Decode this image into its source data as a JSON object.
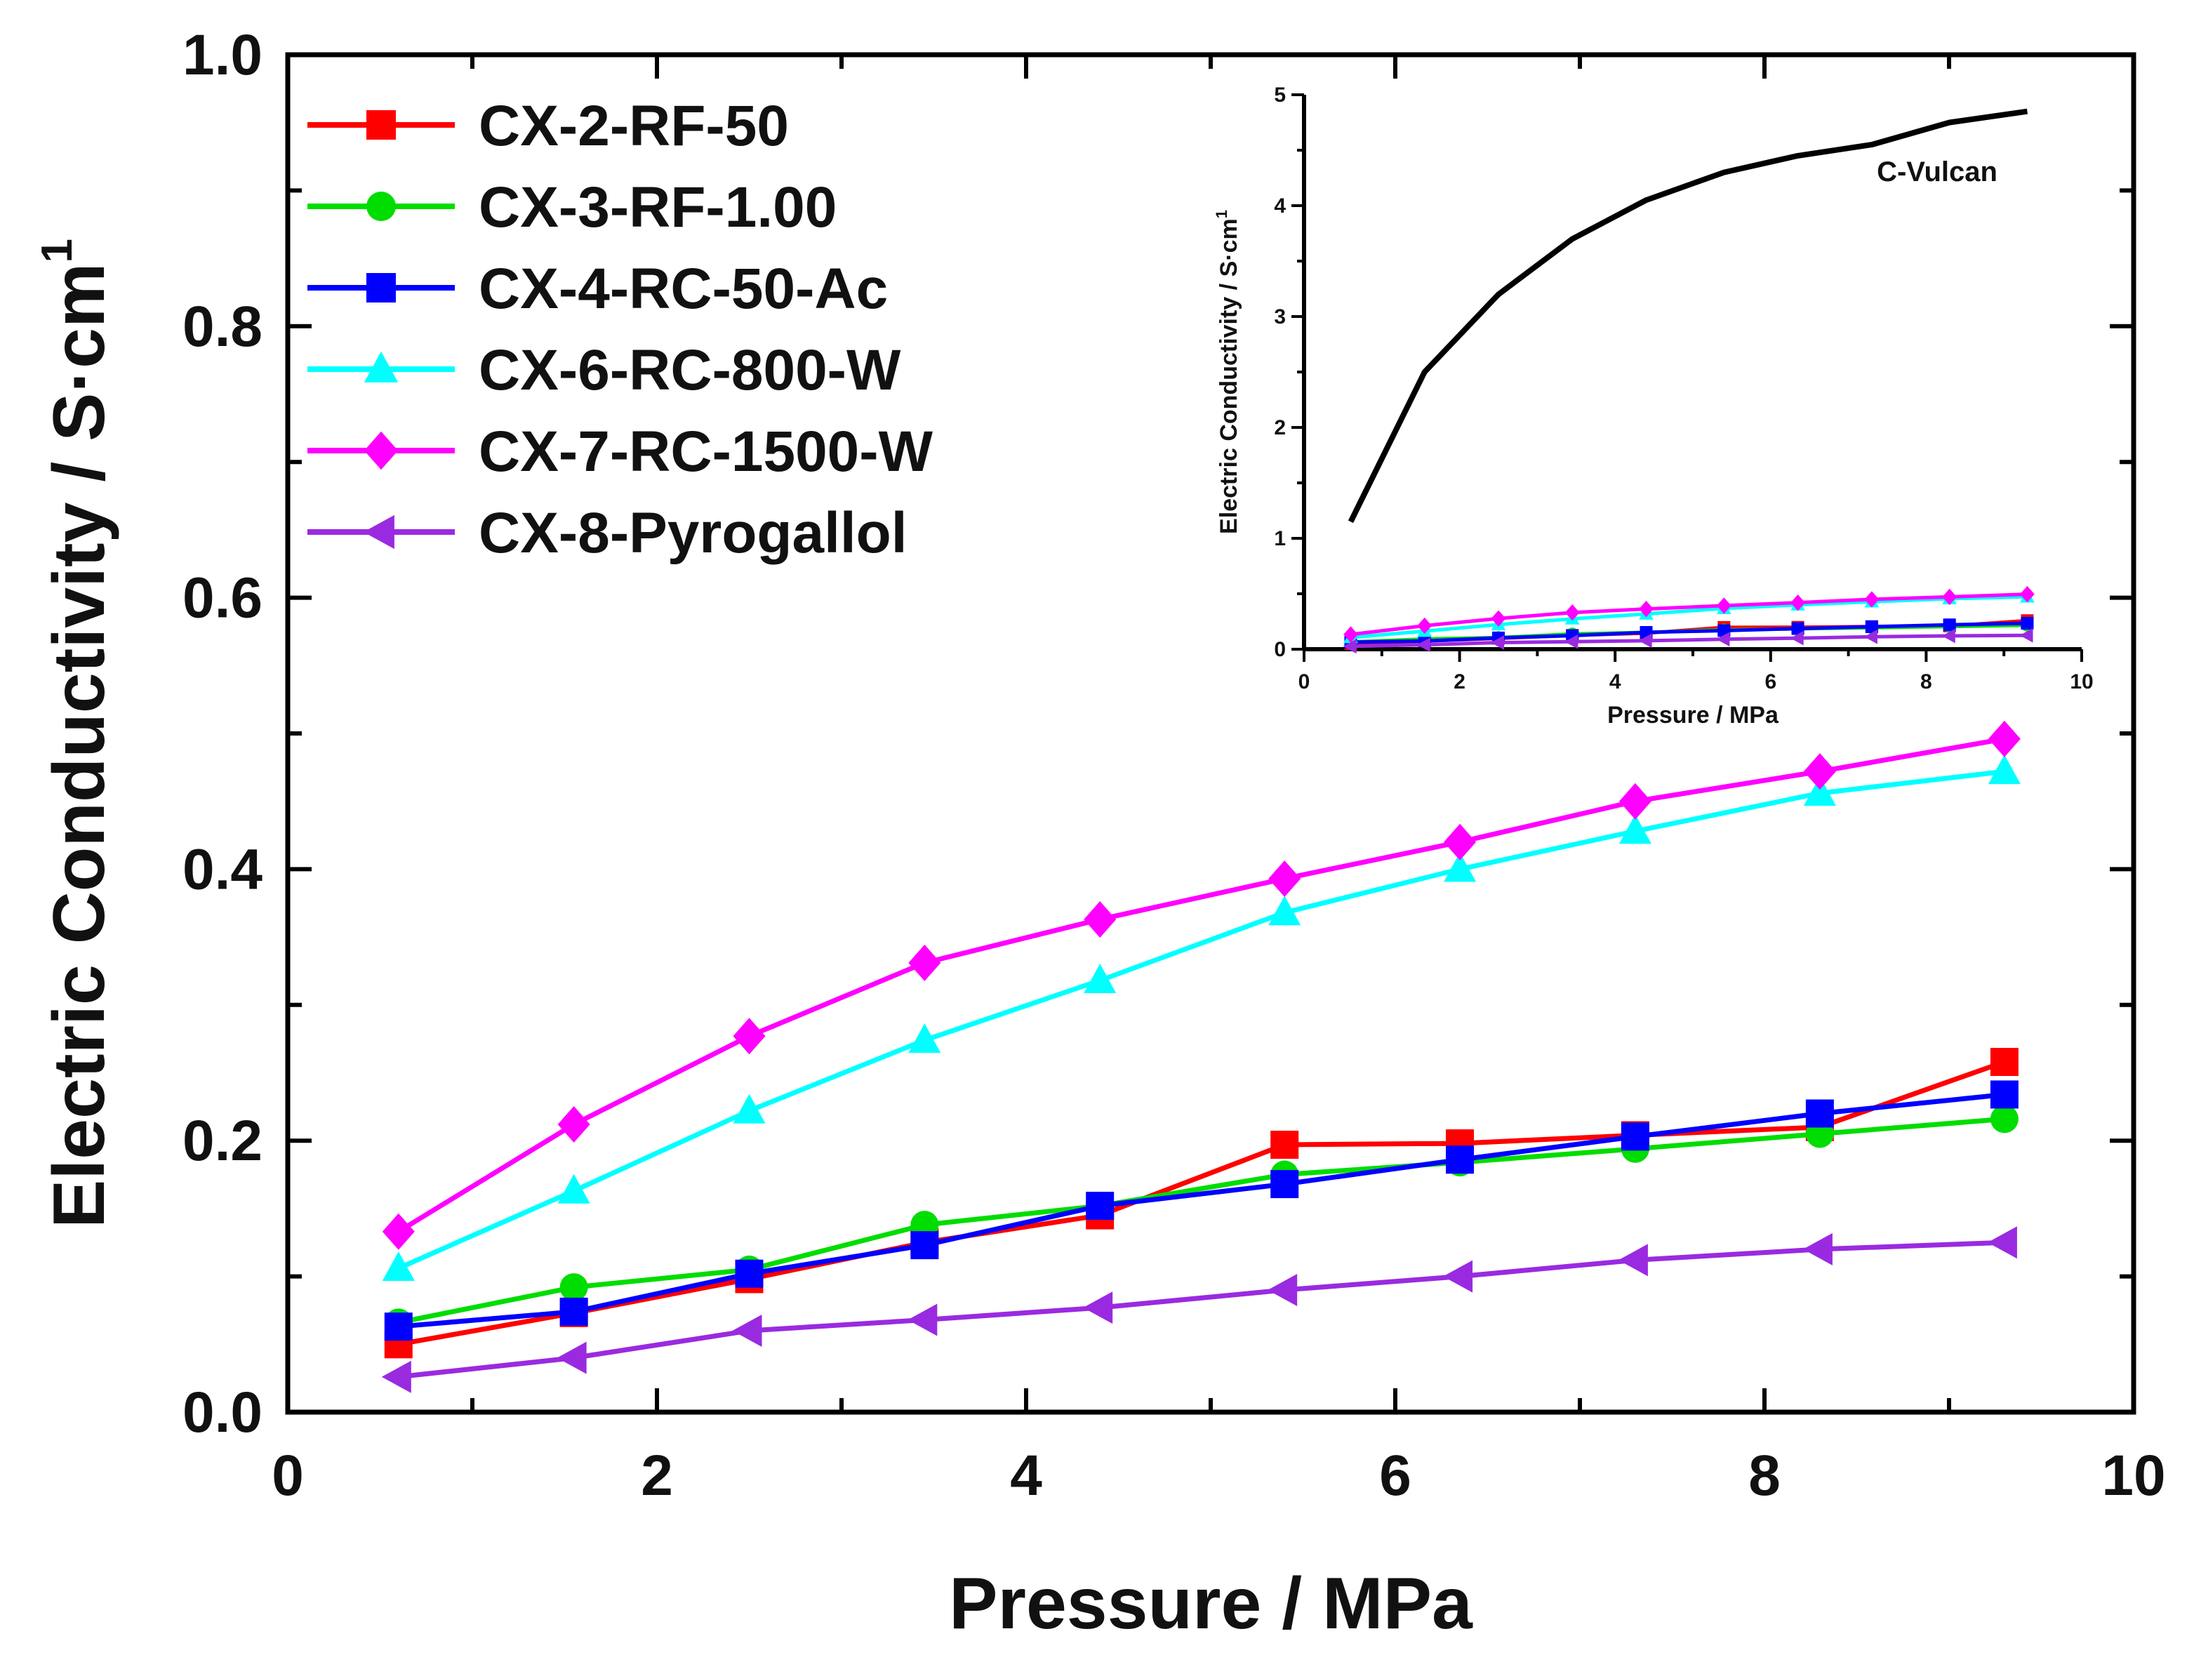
{
  "chart_data": [
    {
      "type": "line",
      "title": "",
      "xlabel": "Pressure / MPa",
      "ylabel": "Electric Conductivity / S·cm",
      "ylabel_superscript": "1",
      "xlim": [
        0,
        10
      ],
      "ylim": [
        0,
        1.0
      ],
      "x_ticks": [
        "0",
        "2",
        "4",
        "6",
        "8",
        "10"
      ],
      "y_ticks": [
        "0.0",
        "0.2",
        "0.4",
        "0.6",
        "0.8",
        "1.0"
      ],
      "legend_position": "top-left",
      "x": [
        0.6,
        1.55,
        2.5,
        3.45,
        4.4,
        5.4,
        6.35,
        7.3,
        8.3,
        9.3
      ],
      "series": [
        {
          "name": "CX-2-RF-50",
          "color": "#ff0000",
          "marker": "square",
          "values": [
            0.05,
            0.073,
            0.098,
            0.125,
            0.145,
            0.197,
            0.198,
            0.204,
            0.21,
            0.258
          ]
        },
        {
          "name": "CX-3-RF-1.00",
          "color": "#00dd00",
          "marker": "circle",
          "values": [
            0.066,
            0.092,
            0.105,
            0.138,
            0.152,
            0.175,
            0.184,
            0.194,
            0.205,
            0.216
          ]
        },
        {
          "name": "CX-4-RC-50-Ac",
          "color": "#0000ff",
          "marker": "square",
          "values": [
            0.063,
            0.074,
            0.102,
            0.123,
            0.152,
            0.168,
            0.186,
            0.203,
            0.22,
            0.234
          ]
        },
        {
          "name": "CX-6-RC-800-W",
          "color": "#00ffff",
          "marker": "triangle-up",
          "values": [
            0.106,
            0.163,
            0.222,
            0.274,
            0.318,
            0.368,
            0.4,
            0.428,
            0.456,
            0.472
          ]
        },
        {
          "name": "CX-7-RC-1500-W",
          "color": "#ff00ff",
          "marker": "diamond",
          "values": [
            0.133,
            0.212,
            0.277,
            0.331,
            0.363,
            0.393,
            0.42,
            0.45,
            0.472,
            0.496
          ]
        },
        {
          "name": "CX-8-Pyrogallol",
          "color": "#9a2ae0",
          "marker": "triangle-left",
          "values": [
            0.026,
            0.04,
            0.06,
            0.068,
            0.077,
            0.09,
            0.1,
            0.112,
            0.12,
            0.125
          ]
        }
      ]
    },
    {
      "type": "line",
      "title": "inset",
      "xlabel": "Pressure / MPa",
      "ylabel": "Electric Conductivity / S·cm",
      "ylabel_superscript": "1",
      "xlim": [
        0,
        10
      ],
      "ylim": [
        0,
        5
      ],
      "x_ticks": [
        "0",
        "2",
        "4",
        "6",
        "8",
        "10"
      ],
      "y_ticks": [
        "0",
        "1",
        "2",
        "3",
        "4",
        "5"
      ],
      "annotation": "C-Vulcan",
      "x": [
        0.6,
        1.55,
        2.5,
        3.45,
        4.4,
        5.4,
        6.35,
        7.3,
        8.3,
        9.3
      ],
      "series": [
        {
          "name": "C-Vulcan",
          "color": "#000000",
          "marker": "none",
          "values": [
            1.15,
            2.5,
            3.2,
            3.7,
            4.05,
            4.3,
            4.45,
            4.55,
            4.75,
            4.85
          ]
        },
        {
          "name": "CX-2-RF-50",
          "color": "#ff0000",
          "marker": "square",
          "values": [
            0.05,
            0.073,
            0.098,
            0.125,
            0.145,
            0.197,
            0.198,
            0.204,
            0.21,
            0.258
          ]
        },
        {
          "name": "CX-3-RF-1.00",
          "color": "#00dd00",
          "marker": "circle",
          "values": [
            0.066,
            0.092,
            0.105,
            0.138,
            0.152,
            0.175,
            0.184,
            0.194,
            0.205,
            0.216
          ]
        },
        {
          "name": "CX-4-RC-50-Ac",
          "color": "#0000ff",
          "marker": "square",
          "values": [
            0.063,
            0.074,
            0.102,
            0.123,
            0.152,
            0.168,
            0.186,
            0.203,
            0.22,
            0.234
          ]
        },
        {
          "name": "CX-6-RC-800-W",
          "color": "#00ffff",
          "marker": "triangle-up",
          "values": [
            0.106,
            0.163,
            0.222,
            0.274,
            0.318,
            0.368,
            0.4,
            0.428,
            0.456,
            0.472
          ]
        },
        {
          "name": "CX-7-RC-1500-W",
          "color": "#ff00ff",
          "marker": "diamond",
          "values": [
            0.133,
            0.212,
            0.277,
            0.331,
            0.363,
            0.393,
            0.42,
            0.45,
            0.472,
            0.496
          ]
        },
        {
          "name": "CX-8-Pyrogallol",
          "color": "#9a2ae0",
          "marker": "triangle-left",
          "values": [
            0.026,
            0.04,
            0.06,
            0.068,
            0.077,
            0.09,
            0.1,
            0.112,
            0.12,
            0.125
          ]
        }
      ]
    }
  ]
}
